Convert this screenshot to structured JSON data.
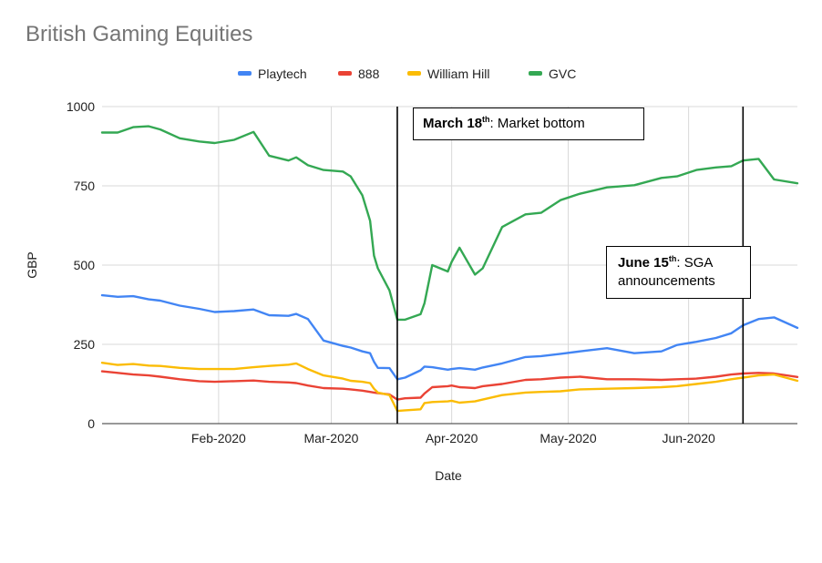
{
  "chart_data": {
    "type": "line",
    "title": "British Gaming Equities",
    "xlabel": "Date",
    "ylabel": "GBP",
    "ylim": [
      0,
      1000
    ],
    "yticks": [
      0,
      250,
      500,
      750,
      1000
    ],
    "xticks": [
      "Feb-2020",
      "Mar-2020",
      "Apr-2020",
      "May-2020",
      "Jun-2020"
    ],
    "grid": true,
    "legend_position": "top",
    "x": [
      "2020-01-02",
      "2020-01-06",
      "2020-01-10",
      "2020-01-14",
      "2020-01-17",
      "2020-01-22",
      "2020-01-27",
      "2020-01-31",
      "2020-02-05",
      "2020-02-10",
      "2020-02-14",
      "2020-02-19",
      "2020-02-21",
      "2020-02-24",
      "2020-02-28",
      "2020-03-04",
      "2020-03-06",
      "2020-03-09",
      "2020-03-11",
      "2020-03-12",
      "2020-03-13",
      "2020-03-16",
      "2020-03-18",
      "2020-03-20",
      "2020-03-24",
      "2020-03-25",
      "2020-03-27",
      "2020-03-31",
      "2020-04-01",
      "2020-04-03",
      "2020-04-07",
      "2020-04-09",
      "2020-04-14",
      "2020-04-20",
      "2020-04-24",
      "2020-04-29",
      "2020-05-04",
      "2020-05-11",
      "2020-05-18",
      "2020-05-25",
      "2020-05-29",
      "2020-06-03",
      "2020-06-08",
      "2020-06-12",
      "2020-06-15",
      "2020-06-19",
      "2020-06-23",
      "2020-06-29"
    ],
    "series": [
      {
        "name": "Playtech",
        "color": "#4285f4",
        "values": [
          405,
          400,
          402,
          392,
          388,
          372,
          362,
          352,
          355,
          360,
          342,
          340,
          346,
          330,
          262,
          245,
          240,
          228,
          222,
          195,
          176,
          175,
          140,
          145,
          168,
          180,
          178,
          170,
          172,
          175,
          170,
          177,
          190,
          210,
          213,
          220,
          228,
          238,
          222,
          228,
          248,
          258,
          270,
          285,
          310,
          330,
          335,
          302
        ]
      },
      {
        "name": "888",
        "color": "#ea4335",
        "values": [
          165,
          160,
          155,
          152,
          148,
          140,
          134,
          132,
          134,
          136,
          132,
          130,
          128,
          120,
          112,
          110,
          108,
          104,
          100,
          98,
          96,
          92,
          76,
          80,
          82,
          95,
          115,
          118,
          120,
          115,
          112,
          118,
          125,
          138,
          140,
          145,
          148,
          140,
          140,
          138,
          140,
          142,
          148,
          155,
          158,
          160,
          158,
          147
        ]
      },
      {
        "name": "William Hill",
        "color": "#fbbc04",
        "values": [
          192,
          185,
          188,
          183,
          182,
          176,
          172,
          172,
          172,
          178,
          182,
          186,
          190,
          172,
          152,
          142,
          135,
          132,
          128,
          110,
          98,
          90,
          40,
          42,
          45,
          65,
          68,
          70,
          72,
          66,
          70,
          76,
          90,
          98,
          100,
          102,
          108,
          110,
          112,
          115,
          118,
          125,
          132,
          140,
          145,
          152,
          155,
          135
        ]
      },
      {
        "name": "GVC",
        "color": "#34a853",
        "values": [
          918,
          918,
          935,
          938,
          928,
          900,
          890,
          885,
          895,
          920,
          845,
          830,
          840,
          815,
          800,
          795,
          780,
          720,
          640,
          530,
          490,
          420,
          328,
          328,
          345,
          380,
          500,
          480,
          510,
          555,
          470,
          490,
          620,
          660,
          665,
          705,
          725,
          745,
          752,
          775,
          780,
          800,
          808,
          812,
          830,
          835,
          770,
          758
        ]
      }
    ],
    "annotations": [
      {
        "date": "2020-03-18",
        "label_bold": "March 18",
        "label_sup": "th",
        "label_rest": ": Market bottom"
      },
      {
        "date": "2020-06-15",
        "label_bold": "June 15",
        "label_sup": "th",
        "label_rest": ": SGA announcements"
      }
    ]
  }
}
